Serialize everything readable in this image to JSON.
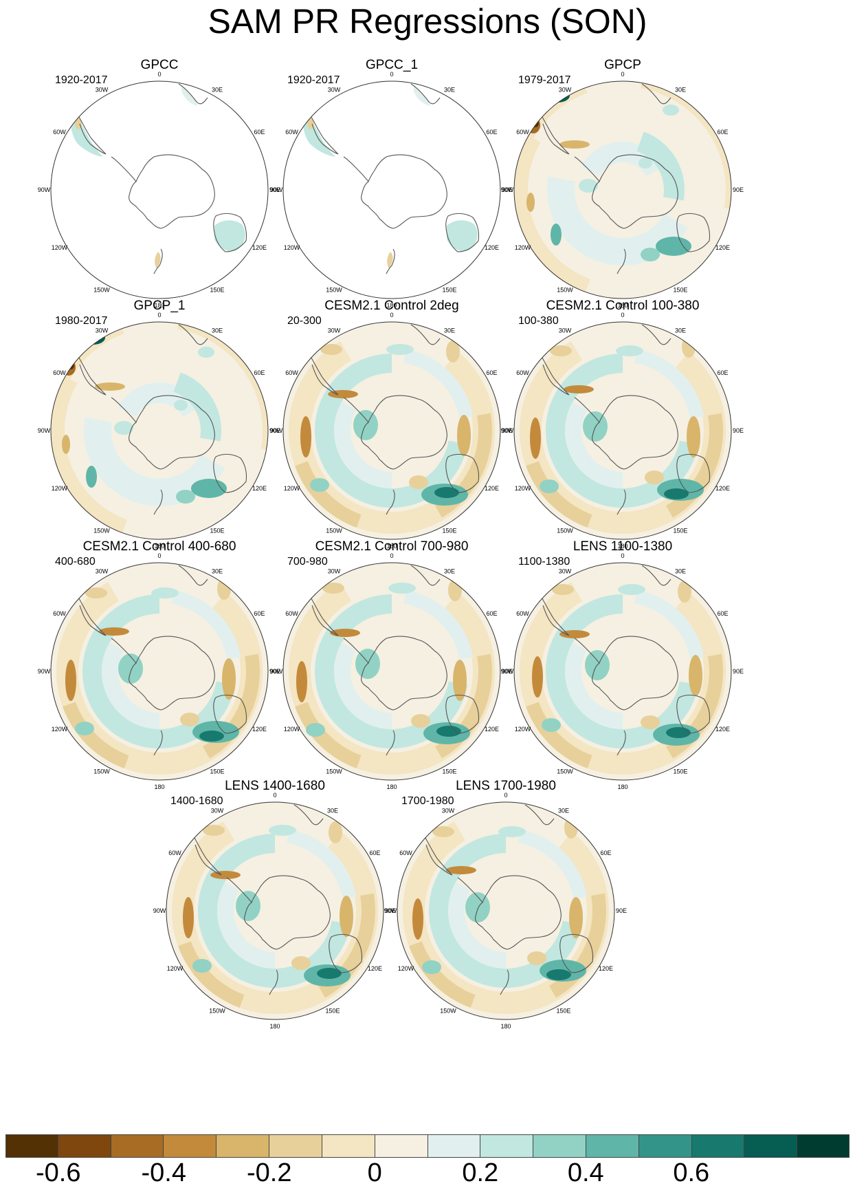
{
  "title": "SAM PR Regressions (SON)",
  "lon_labels": [
    "0",
    "30E",
    "60E",
    "90E",
    "120E",
    "150E",
    "180",
    "150W",
    "120W",
    "90W",
    "60W",
    "30W"
  ],
  "panels": [
    {
      "title": "GPCC",
      "range": "1920-2017",
      "style": "land"
    },
    {
      "title": "GPCC_1",
      "range": "1920-2017",
      "style": "land"
    },
    {
      "title": "GPCP",
      "range": "1979-2017",
      "style": "obs"
    },
    {
      "title": "GPCP_1",
      "range": "1980-2017",
      "style": "obs"
    },
    {
      "title": "CESM2.1 Control 2deg",
      "range": "20-300",
      "style": "model"
    },
    {
      "title": "CESM2.1 Control 100-380",
      "range": "100-380",
      "style": "model"
    },
    {
      "title": "CESM2.1 Control 400-680",
      "range": "400-680",
      "style": "model"
    },
    {
      "title": "CESM2.1 Control 700-980",
      "range": "700-980",
      "style": "model"
    },
    {
      "title": "LENS 1100-1380",
      "range": "1100-1380",
      "style": "model"
    },
    {
      "title": "LENS 1400-1680",
      "range": "1400-1680",
      "style": "model"
    },
    {
      "title": "LENS 1700-1980",
      "range": "1700-1980",
      "style": "model"
    }
  ],
  "colorbar": {
    "colors": [
      "#543005",
      "#7f470e",
      "#a86c24",
      "#c38a3c",
      "#d8b56b",
      "#e8d09a",
      "#f4e5c3",
      "#f5f0e2",
      "#e1f0ee",
      "#c1e7e0",
      "#91d2c5",
      "#5fb6a8",
      "#33958a",
      "#187a6e",
      "#065e52",
      "#013c30"
    ],
    "ticks": [
      "-0.6",
      "-0.4",
      "-0.2",
      "0",
      "0.2",
      "0.4",
      "0.6"
    ]
  }
}
